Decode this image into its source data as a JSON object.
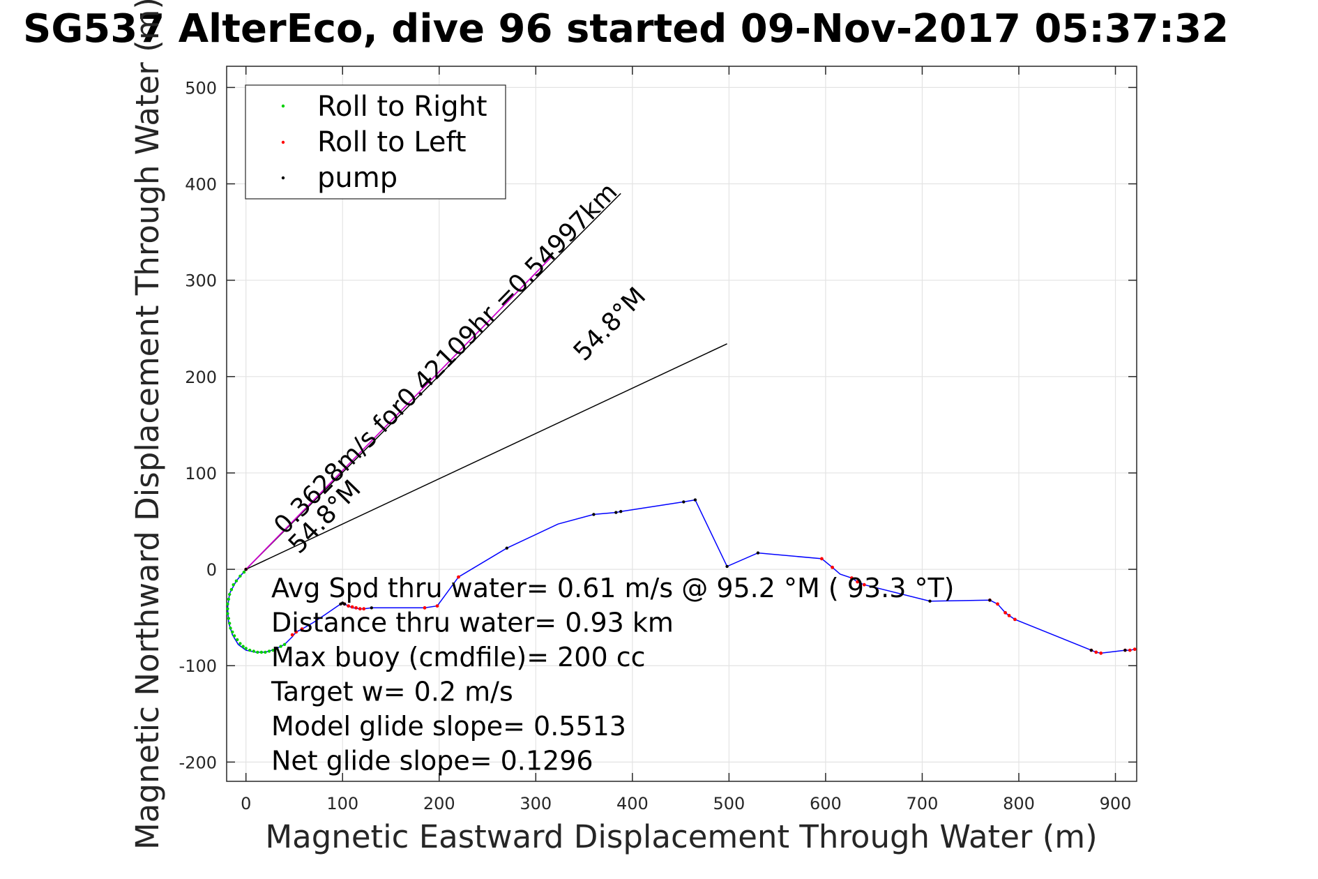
{
  "chart_data": {
    "type": "line",
    "title": "SG537 AlterEco, dive 96 started 09-Nov-2017 05:37:32",
    "xlabel": "Magnetic Eastward Displacement Through Water (m)",
    "ylabel": "Magnetic Northward Displacement Through Water (m)",
    "xlim": [
      -20,
      922
    ],
    "ylim": [
      -220,
      522
    ],
    "xticks": [
      "0",
      "100",
      "200",
      "300",
      "400",
      "500",
      "600",
      "700",
      "800",
      "900"
    ],
    "yticks": [
      "-200",
      "-100",
      "0",
      "100",
      "200",
      "300",
      "400",
      "500"
    ],
    "grid": true,
    "legend_position": "top-left",
    "legend": [
      {
        "label": "Roll to Right",
        "color": "#00d000"
      },
      {
        "label": "Roll to Left",
        "color": "#ff0000"
      },
      {
        "label": "pump",
        "color": "#000000"
      }
    ],
    "track": {
      "color": "#0000ff",
      "x": [
        0,
        -10,
        -17,
        -19,
        -18,
        -14,
        -8,
        0,
        10,
        20,
        30,
        40,
        48,
        52,
        58,
        70,
        82,
        95,
        100,
        104,
        110,
        118,
        122,
        130,
        185,
        198,
        220,
        270,
        323,
        360,
        383,
        388,
        453,
        465,
        498,
        530,
        596,
        607,
        615,
        627,
        633,
        640,
        708,
        770,
        778,
        786,
        790,
        796,
        875,
        880,
        885,
        910,
        915,
        920
      ],
      "y": [
        0,
        -12,
        -25,
        -40,
        -55,
        -68,
        -78,
        -84,
        -86,
        -86,
        -83,
        -78,
        -70,
        -65,
        -62,
        -55,
        -47,
        -38,
        -35,
        -37,
        -40,
        -41,
        -41,
        -40,
        -40,
        -38,
        -8,
        22,
        47,
        57,
        59,
        60,
        70,
        72,
        3,
        17,
        11,
        2,
        -5,
        -9,
        -13,
        -16,
        -33,
        -32,
        -36,
        -45,
        -48,
        -52,
        -84,
        -86,
        -87,
        -84,
        -84,
        -83
      ]
    },
    "course": {
      "color": "#cc00cc",
      "x": [
        0,
        317
      ],
      "y": [
        0,
        325
      ]
    },
    "cone_lines": [
      {
        "x": [
          0,
          388
        ],
        "y": [
          0,
          390
        ]
      },
      {
        "x": [
          0,
          498
        ],
        "y": [
          0,
          234
        ]
      }
    ],
    "roll_right_points": {
      "x": [
        -2,
        -6,
        -10,
        -13,
        -15,
        -17,
        -18,
        -19,
        -19,
        -19,
        -18,
        -17,
        -16,
        -14,
        -12,
        -9,
        -6,
        -3,
        0,
        4,
        8,
        12,
        16,
        20,
        24,
        28,
        32,
        36,
        40
      ],
      "y": [
        -3,
        -7,
        -12,
        -16,
        -21,
        -26,
        -31,
        -36,
        -41,
        -46,
        -51,
        -56,
        -61,
        -65,
        -69,
        -73,
        -77,
        -80,
        -82,
        -84,
        -85,
        -86,
        -86,
        -86,
        -85,
        -84,
        -82,
        -80,
        -78
      ]
    },
    "roll_left_points": {
      "x": [
        0,
        48,
        52,
        58,
        102,
        106,
        110,
        114,
        118,
        122,
        185,
        198,
        220,
        596,
        607,
        627,
        633,
        640,
        770,
        778,
        786,
        790,
        796,
        875,
        880,
        885,
        910,
        915,
        920
      ],
      "y": [
        0,
        -68,
        -65,
        -62,
        -36,
        -38,
        -39,
        -40,
        -41,
        -41,
        -40,
        -38,
        -8,
        11,
        2,
        -9,
        -13,
        -16,
        -32,
        -36,
        -45,
        -48,
        -52,
        -84,
        -86,
        -87,
        -84,
        -84,
        -83
      ]
    },
    "pump_points": {
      "x": [
        0,
        98,
        100,
        102,
        130,
        270,
        360,
        383,
        388,
        453,
        465,
        498,
        530,
        708,
        770,
        875,
        910
      ],
      "y": [
        0,
        -36,
        -35,
        -36,
        -40,
        22,
        57,
        59,
        60,
        70,
        72,
        3,
        17,
        -33,
        -32,
        -84,
        -84
      ]
    },
    "slanted_labels": [
      {
        "text": "0.3628m/s for0.42109hr =0.54997km",
        "x": 40,
        "y": 35,
        "angle": 45.7
      },
      {
        "text": "54.8°M",
        "x": 55,
        "y": 15,
        "angle": 45.7
      },
      {
        "text": "54.8°M",
        "x": 350,
        "y": 215,
        "angle": 45.7
      }
    ],
    "annotations": [
      "Avg Spd thru water=  0.61 m/s @  95.2 °M ( 93.3 °T)",
      "Distance thru water=  0.93 km",
      "Max buoy (cmdfile)= 200 cc",
      "Target w= 0.2 m/s",
      "Model glide slope= 0.5513",
      "Net glide slope= 0.1296"
    ]
  }
}
